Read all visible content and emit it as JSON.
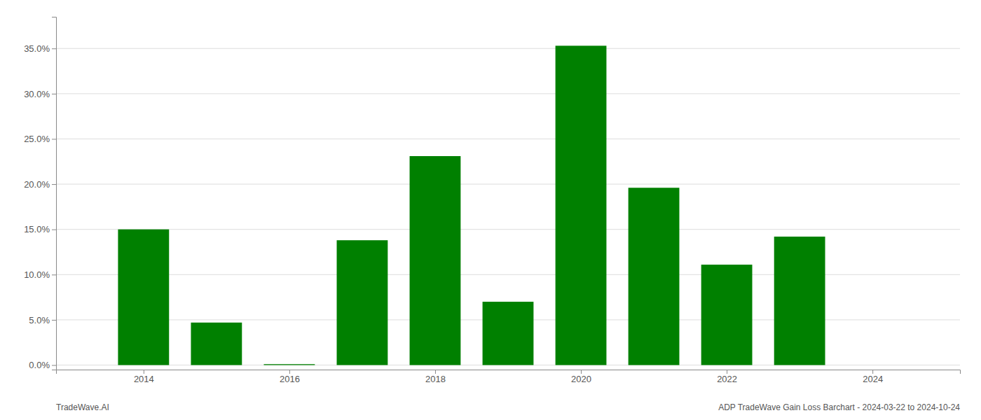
{
  "chart_data": {
    "type": "bar",
    "x": [
      2014,
      2015,
      2016,
      2017,
      2018,
      2019,
      2020,
      2021,
      2022,
      2023
    ],
    "values": [
      0.15,
      0.047,
      0.001,
      0.138,
      0.231,
      0.07,
      0.353,
      0.196,
      0.111,
      0.142
    ],
    "color": "#008000",
    "xlim": [
      2012.8,
      2025.2
    ],
    "xticks": [
      2014,
      2016,
      2018,
      2020,
      2022,
      2024
    ],
    "ylim": [
      -0.005,
      0.385
    ],
    "yticks": [
      {
        "value": 0.0,
        "label": "0.0%"
      },
      {
        "value": 0.05,
        "label": "5.0%"
      },
      {
        "value": 0.1,
        "label": "10.0%"
      },
      {
        "value": 0.15,
        "label": "15.0%"
      },
      {
        "value": 0.2,
        "label": "20.0%"
      },
      {
        "value": 0.25,
        "label": "25.0%"
      },
      {
        "value": 0.3,
        "label": "30.0%"
      },
      {
        "value": 0.35,
        "label": "35.0%"
      }
    ],
    "grid": true,
    "annotations": [
      "TradeWave.AI",
      "ADP TradeWave Gain Loss Barchart - 2024-03-22 to 2024-10-24"
    ]
  }
}
